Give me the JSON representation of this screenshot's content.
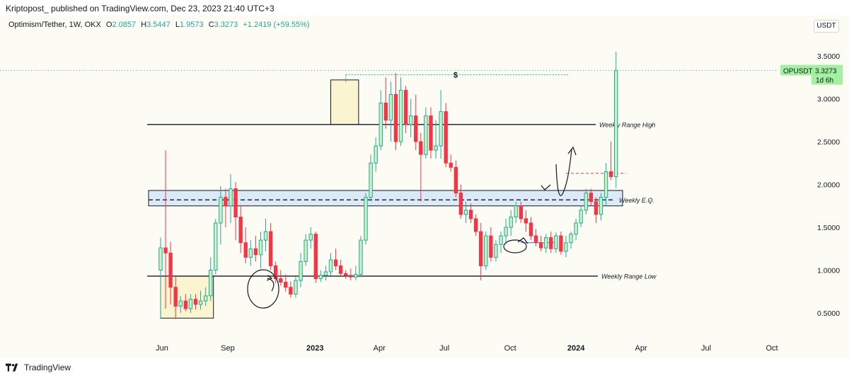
{
  "header": {
    "publisher_text": "Kriptopost_  published on TradingView.com, Dec 23, 2023 21:40 UTC+3"
  },
  "legend": {
    "symbol": "Optimism/Tether, 1W, OKX",
    "open_label": "O",
    "open": "2.0857",
    "high_label": "H",
    "high": "3.5447",
    "low_label": "L",
    "low": "1.9573",
    "close_label": "C",
    "close": "3.3273",
    "change": "+1.2419 (+59.55%)"
  },
  "currency_button": "USDT",
  "price_tag": {
    "symbol": "OPUSDT",
    "price": "3.3273",
    "countdown": "1d 6h"
  },
  "footer": {
    "brand": "TradingView"
  },
  "colors": {
    "up": "#26a69a",
    "up_fill": "#c8f3c0",
    "down": "#f23645",
    "background": "#fdfcf4",
    "zone": "#fbf4d0",
    "eq_zone": "#dce9f7"
  },
  "chart_data": {
    "type": "candlestick",
    "timeframe": "1W",
    "y_axis": {
      "ticks": [
        "0.5000",
        "1.0000",
        "1.5000",
        "2.0000",
        "2.5000",
        "3.0000",
        "3.5000"
      ],
      "range": [
        0.25,
        3.85
      ]
    },
    "x_axis": {
      "ticks": [
        {
          "label": "Jun",
          "date": "2022-06-01",
          "bold": false
        },
        {
          "label": "Sep",
          "date": "2022-09-01",
          "bold": false
        },
        {
          "label": "2023",
          "date": "2023-01-01",
          "bold": true
        },
        {
          "label": "Apr",
          "date": "2023-04-01",
          "bold": false
        },
        {
          "label": "Jul",
          "date": "2023-07-01",
          "bold": false
        },
        {
          "label": "Oct",
          "date": "2023-10-01",
          "bold": false
        },
        {
          "label": "2024",
          "date": "2024-01-01",
          "bold": true
        },
        {
          "label": "Apr",
          "date": "2024-04-01",
          "bold": false
        },
        {
          "label": "Jul",
          "date": "2024-07-01",
          "bold": false
        },
        {
          "label": "Oct",
          "date": "2024-10-01",
          "bold": false
        }
      ],
      "range": [
        "2022-05-11",
        "2024-11-07"
      ]
    },
    "candles": [
      [
        1.0,
        1.38,
        0.43,
        1.26
      ],
      [
        1.26,
        2.4,
        0.55,
        1.2
      ],
      [
        1.2,
        1.33,
        0.6,
        0.8
      ],
      [
        0.8,
        0.92,
        0.43,
        0.58
      ],
      [
        0.58,
        0.7,
        0.5,
        0.64
      ],
      [
        0.64,
        0.72,
        0.52,
        0.55
      ],
      [
        0.55,
        0.72,
        0.5,
        0.66
      ],
      [
        0.66,
        0.72,
        0.54,
        0.6
      ],
      [
        0.6,
        0.76,
        0.54,
        0.64
      ],
      [
        0.64,
        0.8,
        0.58,
        0.7
      ],
      [
        0.7,
        1.15,
        0.64,
        1.0
      ],
      [
        1.0,
        1.6,
        0.95,
        1.55
      ],
      [
        1.55,
        1.98,
        1.3,
        1.85
      ],
      [
        1.85,
        1.95,
        1.5,
        1.75
      ],
      [
        1.75,
        2.12,
        1.55,
        1.95
      ],
      [
        1.95,
        2.03,
        1.35,
        1.62
      ],
      [
        1.62,
        1.76,
        1.2,
        1.32
      ],
      [
        1.32,
        1.5,
        1.08,
        1.15
      ],
      [
        1.15,
        1.35,
        1.05,
        1.25
      ],
      [
        1.25,
        1.4,
        1.1,
        1.18
      ],
      [
        1.18,
        1.45,
        1.02,
        1.35
      ],
      [
        1.35,
        1.6,
        1.22,
        1.45
      ],
      [
        1.45,
        1.55,
        1.0,
        1.05
      ],
      [
        1.05,
        1.1,
        0.85,
        0.9
      ],
      [
        0.9,
        1.0,
        0.82,
        0.86
      ],
      [
        0.86,
        0.95,
        0.75,
        0.8
      ],
      [
        0.8,
        0.87,
        0.68,
        0.72
      ],
      [
        0.72,
        0.92,
        0.68,
        0.88
      ],
      [
        0.88,
        1.2,
        0.8,
        1.1
      ],
      [
        1.1,
        1.42,
        1.05,
        1.35
      ],
      [
        1.35,
        1.5,
        1.25,
        1.42
      ],
      [
        1.42,
        1.45,
        0.85,
        0.9
      ],
      [
        0.9,
        1.0,
        0.86,
        0.94
      ],
      [
        0.94,
        1.05,
        0.88,
        0.98
      ],
      [
        0.98,
        1.2,
        0.92,
        1.12
      ],
      [
        1.12,
        1.25,
        1.0,
        1.05
      ],
      [
        1.05,
        1.12,
        0.92,
        0.96
      ],
      [
        0.96,
        1.0,
        0.9,
        0.94
      ],
      [
        0.94,
        1.02,
        0.88,
        0.92
      ],
      [
        0.92,
        1.05,
        0.88,
        0.95
      ],
      [
        0.95,
        1.4,
        0.92,
        1.35
      ],
      [
        1.35,
        1.9,
        1.3,
        1.85
      ],
      [
        1.85,
        2.35,
        1.8,
        2.25
      ],
      [
        2.25,
        2.55,
        2.15,
        2.45
      ],
      [
        2.45,
        3.1,
        2.4,
        2.95
      ],
      [
        2.95,
        3.25,
        2.65,
        2.75
      ],
      [
        2.75,
        3.2,
        2.5,
        3.05
      ],
      [
        3.05,
        3.3,
        2.4,
        2.5
      ],
      [
        2.5,
        3.25,
        2.45,
        3.1
      ],
      [
        3.1,
        3.15,
        2.6,
        2.7
      ],
      [
        2.7,
        3.0,
        2.55,
        2.8
      ],
      [
        2.8,
        3.05,
        2.4,
        2.5
      ],
      [
        2.5,
        2.6,
        1.8,
        2.35
      ],
      [
        2.35,
        2.9,
        2.3,
        2.8
      ],
      [
        2.8,
        2.9,
        2.3,
        2.4
      ],
      [
        2.4,
        2.75,
        2.3,
        2.45
      ],
      [
        2.45,
        3.1,
        2.3,
        2.85
      ],
      [
        2.85,
        2.95,
        2.2,
        2.25
      ],
      [
        2.25,
        2.35,
        2.15,
        2.2
      ],
      [
        2.2,
        2.28,
        1.85,
        1.9
      ],
      [
        1.9,
        2.0,
        1.6,
        1.65
      ],
      [
        1.65,
        1.8,
        1.55,
        1.7
      ],
      [
        1.7,
        1.78,
        1.55,
        1.6
      ],
      [
        1.6,
        1.65,
        1.4,
        1.45
      ],
      [
        1.45,
        1.55,
        0.88,
        1.05
      ],
      [
        1.05,
        1.45,
        1.0,
        1.4
      ],
      [
        1.4,
        1.5,
        1.1,
        1.15
      ],
      [
        1.15,
        1.35,
        1.1,
        1.3
      ],
      [
        1.3,
        1.45,
        1.2,
        1.4
      ],
      [
        1.4,
        1.6,
        1.3,
        1.5
      ],
      [
        1.5,
        1.7,
        1.4,
        1.62
      ],
      [
        1.62,
        1.8,
        1.55,
        1.75
      ],
      [
        1.75,
        1.8,
        1.55,
        1.6
      ],
      [
        1.6,
        1.7,
        1.45,
        1.55
      ],
      [
        1.55,
        1.62,
        1.35,
        1.4
      ],
      [
        1.4,
        1.48,
        1.28,
        1.32
      ],
      [
        1.32,
        1.4,
        1.22,
        1.26
      ],
      [
        1.26,
        1.42,
        1.2,
        1.38
      ],
      [
        1.38,
        1.45,
        1.2,
        1.25
      ],
      [
        1.25,
        1.44,
        1.2,
        1.4
      ],
      [
        1.4,
        1.45,
        1.18,
        1.22
      ],
      [
        1.22,
        1.4,
        1.15,
        1.32
      ],
      [
        1.32,
        1.45,
        1.25,
        1.42
      ],
      [
        1.42,
        1.6,
        1.35,
        1.55
      ],
      [
        1.55,
        1.75,
        1.5,
        1.7
      ],
      [
        1.7,
        1.95,
        1.65,
        1.9
      ],
      [
        1.9,
        1.95,
        1.75,
        1.8
      ],
      [
        1.8,
        1.85,
        1.55,
        1.65
      ],
      [
        1.65,
        1.9,
        1.58,
        1.85
      ],
      [
        1.85,
        2.25,
        1.75,
        2.15
      ],
      [
        2.15,
        2.5,
        2.05,
        2.09
      ],
      [
        2.09,
        3.55,
        1.96,
        3.33
      ]
    ],
    "start_date": "2022-05-30",
    "horizontal_levels": [
      {
        "name": "Weekly Range High",
        "price": 2.7
      },
      {
        "name": "Weekly E.Q.",
        "price": 1.82,
        "dashed": true
      },
      {
        "name": "Weekly Range Low",
        "price": 0.93
      }
    ],
    "eq_zone": [
      1.75,
      1.93
    ],
    "highlight_boxes": [
      {
        "from": "2022-05-30",
        "to": "2022-08-08",
        "low": 0.44,
        "high": 0.93
      },
      {
        "from": "2023-01-23",
        "to": "2023-02-27",
        "low": 2.7,
        "high": 3.22
      }
    ],
    "dotted_target": {
      "from": "2023-02-13",
      "to": "2023-12-18",
      "price": 3.28,
      "label": "$"
    },
    "red_dashed_level": {
      "from": "2023-12-18",
      "to": "2024-03-11",
      "price": 2.13
    },
    "blue_level": {
      "from": "2023-10-16",
      "to": "2023-12-11",
      "price": 1.32
    }
  }
}
